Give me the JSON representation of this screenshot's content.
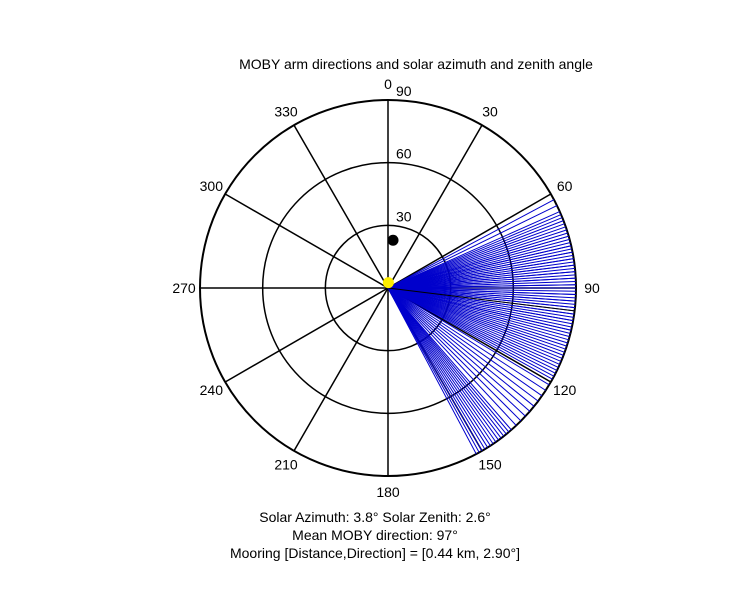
{
  "chart_data": {
    "type": "polar",
    "title": "MOBY arm directions and solar azimuth and zenith angle",
    "angle_ticks": [
      {
        "angle": 0,
        "label": "0"
      },
      {
        "angle": 30,
        "label": "30"
      },
      {
        "angle": 60,
        "label": "60"
      },
      {
        "angle": 90,
        "label": "90"
      },
      {
        "angle": 120,
        "label": "120"
      },
      {
        "angle": 150,
        "label": "150"
      },
      {
        "angle": 180,
        "label": "180"
      },
      {
        "angle": 210,
        "label": "210"
      },
      {
        "angle": 240,
        "label": "240"
      },
      {
        "angle": 270,
        "label": "270"
      },
      {
        "angle": 300,
        "label": "300"
      },
      {
        "angle": 330,
        "label": "330"
      }
    ],
    "radial_ticks": [
      {
        "value": 30,
        "label": "30"
      },
      {
        "value": 60,
        "label": "60"
      },
      {
        "value": 90,
        "label": "90"
      }
    ],
    "rmax": 90,
    "arm_directions": [
      62,
      64,
      66,
      67,
      68,
      69,
      70,
      71,
      72,
      73,
      74,
      74,
      75,
      76,
      77,
      77,
      78,
      79,
      79,
      80,
      81,
      81,
      82,
      83,
      83,
      84,
      85,
      85,
      86,
      87,
      87,
      88,
      89,
      89,
      90,
      90,
      91,
      92,
      92,
      93,
      94,
      94,
      95,
      96,
      96,
      97,
      98,
      98,
      99,
      100,
      100,
      101,
      102,
      103,
      103,
      104,
      105,
      106,
      107,
      108,
      109,
      110,
      111,
      112,
      113,
      114,
      115,
      116,
      117,
      118,
      119,
      121,
      123,
      125,
      127,
      129,
      131,
      133,
      135,
      137,
      139,
      140,
      141,
      142,
      143,
      144,
      145,
      146,
      147,
      148,
      149,
      150,
      151,
      152
    ],
    "mean_direction": 97,
    "solar_azimuth": 3.8,
    "solar_zenith": 2.6,
    "black_marker": {
      "angle": 6,
      "r": 23
    },
    "colors": {
      "arms": "#0000cc",
      "sun": "#ffee00",
      "grid": "#000000"
    }
  },
  "info": {
    "line1": "Solar Azimuth: 3.8°    Solar Zenith: 2.6°",
    "line2": "Mean MOBY direction: 97°",
    "line3": "Mooring [Distance,Direction] = [0.44 km, 2.90°]"
  }
}
